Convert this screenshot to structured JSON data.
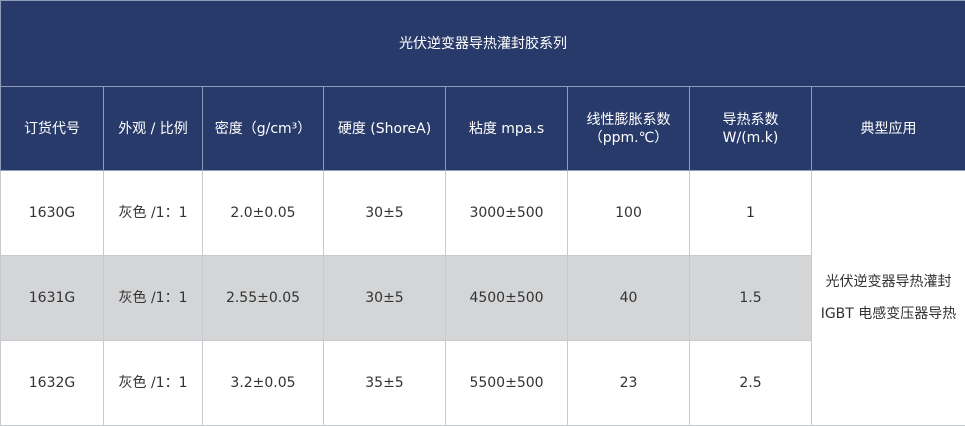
{
  "title": "光伏逆变器导热灌封胶系列",
  "colors": {
    "header_bg": "#283a6a",
    "alt_row_bg": "#d4d5d7"
  },
  "headers": [
    "订货代号",
    "外观 / 比例",
    "密度（g/cm³）",
    "硬度 (ShoreA)",
    "粘度 mpa.s",
    "线性膨胀系数（ppm.℃）",
    "导热系数 W/(m.k)",
    "典型应用"
  ],
  "rows": [
    [
      "1630G",
      "灰色 /1：1",
      "2.0±0.05",
      "30±5",
      "3000±500",
      "100",
      "1"
    ],
    [
      "1631G",
      "灰色 /1：1",
      "2.55±0.05",
      "30±5",
      "4500±500",
      "40",
      "1.5"
    ],
    [
      "1632G",
      "灰色 /1：1",
      "3.2±0.05",
      "35±5",
      "5500±500",
      "23",
      "2.5"
    ]
  ],
  "application": [
    "光伏逆变器导热灌封",
    "IGBT 电感变压器导热"
  ]
}
